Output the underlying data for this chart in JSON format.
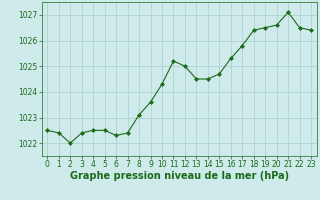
{
  "x": [
    0,
    1,
    2,
    3,
    4,
    5,
    6,
    7,
    8,
    9,
    10,
    11,
    12,
    13,
    14,
    15,
    16,
    17,
    18,
    19,
    20,
    21,
    22,
    23
  ],
  "y": [
    1022.5,
    1022.4,
    1022.0,
    1022.4,
    1022.5,
    1022.5,
    1022.3,
    1022.4,
    1023.1,
    1023.6,
    1024.3,
    1025.2,
    1025.0,
    1024.5,
    1024.5,
    1024.7,
    1025.3,
    1025.8,
    1026.4,
    1026.5,
    1026.6,
    1027.1,
    1026.5,
    1026.4
  ],
  "ylim": [
    1021.5,
    1027.5
  ],
  "xlim": [
    -0.5,
    23.5
  ],
  "yticks": [
    1022,
    1023,
    1024,
    1025,
    1026,
    1027
  ],
  "xticks": [
    0,
    1,
    2,
    3,
    4,
    5,
    6,
    7,
    8,
    9,
    10,
    11,
    12,
    13,
    14,
    15,
    16,
    17,
    18,
    19,
    20,
    21,
    22,
    23
  ],
  "xlabel": "Graphe pression niveau de la mer (hPa)",
  "line_color": "#1a6b1a",
  "marker": "D",
  "marker_size": 2.0,
  "bg_color": "#ceeaea",
  "grid_color": "#a8cccc",
  "xlabel_color": "#1a6b1a",
  "tick_color": "#1a6b1a",
  "tick_label_size": 5.5,
  "xlabel_size": 7.0,
  "linewidth": 0.8
}
